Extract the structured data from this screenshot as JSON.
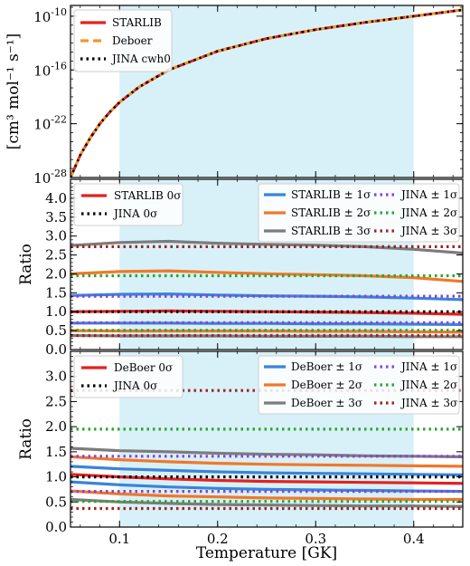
{
  "colors": {
    "band": "#d8f1f8",
    "starlib": "#e3221e",
    "deboer": "#f5952a",
    "jina": "#000000",
    "s1": "#3a84d9",
    "s2": "#f0782a",
    "s3": "#7c7c7c",
    "j1": "#8a42d9",
    "j2": "#2ea52e",
    "j3": "#9b2424"
  },
  "chart_data": [
    {
      "type": "line",
      "panel": "rate",
      "ylabel": "[cm³ mol⁻¹ s⁻¹]",
      "yscale": "log",
      "xlim": [
        0.05,
        0.45
      ],
      "ylim_log10": [
        -28,
        -8.8
      ],
      "band": [
        0.1,
        0.4
      ],
      "yticks_log10": [
        -28,
        -22,
        -16,
        -10
      ],
      "ytick_labels": [
        {
          "base": "10",
          "exp": "-28"
        },
        {
          "base": "10",
          "exp": "-22"
        },
        {
          "base": "10",
          "exp": "-16"
        },
        {
          "base": "10",
          "exp": "-10"
        }
      ],
      "x": [
        0.05,
        0.06,
        0.07,
        0.08,
        0.09,
        0.1,
        0.12,
        0.15,
        0.2,
        0.25,
        0.3,
        0.35,
        0.4,
        0.45
      ],
      "series": [
        {
          "name": "STARLIB",
          "color_key": "starlib",
          "style": "solid",
          "log10_values": [
            -28.0,
            -25.5,
            -23.6,
            -22.0,
            -20.7,
            -19.6,
            -17.9,
            -16.0,
            -13.9,
            -12.5,
            -11.5,
            -10.7,
            -10.0,
            -9.3
          ]
        },
        {
          "name": "Deboer",
          "color_key": "deboer",
          "style": "dashed",
          "log10_values": [
            -28.0,
            -25.5,
            -23.6,
            -22.0,
            -20.7,
            -19.6,
            -17.9,
            -16.0,
            -13.9,
            -12.5,
            -11.5,
            -10.7,
            -10.0,
            -9.3
          ]
        },
        {
          "name": "JINA cwh0",
          "color_key": "jina",
          "style": "dotted",
          "log10_values": [
            -28.0,
            -25.5,
            -23.6,
            -22.0,
            -20.7,
            -19.6,
            -17.9,
            -16.0,
            -13.9,
            -12.5,
            -11.5,
            -10.7,
            -10.0,
            -9.3
          ]
        }
      ],
      "legend": {
        "position": "top-left",
        "entries": [
          "STARLIB",
          "Deboer",
          "JINA cwh0"
        ]
      }
    },
    {
      "type": "line",
      "panel": "ratio-starlib",
      "ylabel": "Ratio",
      "xlim": [
        0.05,
        0.45
      ],
      "ylim": [
        0.0,
        4.5
      ],
      "band": [
        0.1,
        0.4
      ],
      "yticks": [
        "0.0",
        "0.5",
        "1.0",
        "1.5",
        "2.0",
        "2.5",
        "3.0",
        "3.5",
        "4.0"
      ],
      "x": [
        0.05,
        0.1,
        0.15,
        0.2,
        0.25,
        0.3,
        0.35,
        0.4,
        0.45
      ],
      "series": [
        {
          "name": "STARLIB +3σ",
          "color_key": "s3",
          "style": "solid",
          "values": [
            2.75,
            2.83,
            2.86,
            2.81,
            2.78,
            2.76,
            2.72,
            2.65,
            2.55
          ]
        },
        {
          "name": "STARLIB +2σ",
          "color_key": "s2",
          "style": "solid",
          "values": [
            2.0,
            2.06,
            2.08,
            2.04,
            2.0,
            1.98,
            1.95,
            1.9,
            1.8
          ]
        },
        {
          "name": "STARLIB +1σ",
          "color_key": "s1",
          "style": "solid",
          "values": [
            1.43,
            1.46,
            1.47,
            1.44,
            1.42,
            1.41,
            1.39,
            1.36,
            1.32
          ]
        },
        {
          "name": "STARLIB 0σ",
          "color_key": "starlib",
          "style": "solid",
          "values": [
            1.0,
            1.01,
            1.02,
            1.01,
            1.0,
            0.99,
            0.98,
            0.96,
            0.93
          ]
        },
        {
          "name": "STARLIB -1σ",
          "color_key": "s1",
          "style": "solid",
          "values": [
            0.7,
            0.7,
            0.7,
            0.69,
            0.69,
            0.68,
            0.68,
            0.67,
            0.66
          ]
        },
        {
          "name": "STARLIB -2σ",
          "color_key": "s2",
          "style": "solid",
          "values": [
            0.5,
            0.49,
            0.49,
            0.49,
            0.49,
            0.48,
            0.48,
            0.47,
            0.46
          ]
        },
        {
          "name": "STARLIB -3σ",
          "color_key": "s3",
          "style": "solid",
          "values": [
            0.37,
            0.36,
            0.36,
            0.36,
            0.35,
            0.35,
            0.35,
            0.34,
            0.34
          ]
        },
        {
          "name": "JINA +3σ",
          "color_key": "j3",
          "style": "dotted",
          "values": [
            2.72,
            2.72,
            2.72,
            2.72,
            2.72,
            2.72,
            2.72,
            2.72,
            2.72
          ]
        },
        {
          "name": "JINA +2σ",
          "color_key": "j2",
          "style": "dotted",
          "values": [
            1.95,
            1.95,
            1.95,
            1.95,
            1.95,
            1.95,
            1.95,
            1.95,
            1.95
          ]
        },
        {
          "name": "JINA +1σ",
          "color_key": "j1",
          "style": "dotted",
          "values": [
            1.41,
            1.41,
            1.41,
            1.41,
            1.41,
            1.41,
            1.41,
            1.41,
            1.41
          ]
        },
        {
          "name": "JINA 0σ",
          "color_key": "jina",
          "style": "dotted",
          "values": [
            1.0,
            1.0,
            1.0,
            1.0,
            1.0,
            1.0,
            1.0,
            1.0,
            1.0
          ]
        },
        {
          "name": "JINA -1σ",
          "color_key": "j1",
          "style": "dotted",
          "values": [
            0.71,
            0.71,
            0.71,
            0.71,
            0.71,
            0.71,
            0.71,
            0.71,
            0.71
          ]
        },
        {
          "name": "JINA -2σ",
          "color_key": "j2",
          "style": "dotted",
          "values": [
            0.51,
            0.51,
            0.51,
            0.51,
            0.51,
            0.51,
            0.51,
            0.51,
            0.51
          ]
        },
        {
          "name": "JINA -3σ",
          "color_key": "j3",
          "style": "dotted",
          "values": [
            0.37,
            0.37,
            0.37,
            0.37,
            0.37,
            0.37,
            0.37,
            0.37,
            0.37
          ]
        }
      ],
      "legend_left": [
        {
          "text": "STARLIB 0σ",
          "color_key": "starlib",
          "style": "solid"
        },
        {
          "text": "JINA 0σ",
          "color_key": "jina",
          "style": "dotted"
        }
      ],
      "legend_right": [
        {
          "text": "STARLIB ± 1σ",
          "color_key": "s1",
          "style": "solid"
        },
        {
          "text": "JINA ± 1σ",
          "color_key": "j1",
          "style": "dotted"
        },
        {
          "text": "STARLIB ± 2σ",
          "color_key": "s2",
          "style": "solid"
        },
        {
          "text": "JINA ± 2σ",
          "color_key": "j2",
          "style": "dotted"
        },
        {
          "text": "STARLIB ± 3σ",
          "color_key": "s3",
          "style": "solid"
        },
        {
          "text": "JINA ± 3σ",
          "color_key": "j3",
          "style": "dotted"
        }
      ]
    },
    {
      "type": "line",
      "panel": "ratio-deboer",
      "ylabel": "Ratio",
      "xlabel": "Temperature [GK]",
      "xlim": [
        0.05,
        0.45
      ],
      "ylim": [
        0.0,
        3.5
      ],
      "band": [
        0.1,
        0.4
      ],
      "yticks": [
        "0.0",
        "0.5",
        "1.0",
        "1.5",
        "2.0",
        "2.5",
        "3.0"
      ],
      "xticks": [
        "0.1",
        "0.2",
        "0.3",
        "0.4"
      ],
      "xtick_values": [
        0.1,
        0.2,
        0.3,
        0.4
      ],
      "x": [
        0.05,
        0.1,
        0.15,
        0.2,
        0.25,
        0.3,
        0.35,
        0.4,
        0.45
      ],
      "series": [
        {
          "name": "JINA +3σ",
          "color_key": "j3",
          "style": "dotted",
          "values": [
            2.72,
            2.72,
            2.72,
            2.72,
            2.72,
            2.72,
            2.72,
            2.72,
            2.72
          ]
        },
        {
          "name": "JINA +2σ",
          "color_key": "j2",
          "style": "dotted",
          "values": [
            1.95,
            1.95,
            1.95,
            1.95,
            1.95,
            1.95,
            1.95,
            1.95,
            1.95
          ]
        },
        {
          "name": "DeBoer +3σ",
          "color_key": "s3",
          "style": "solid",
          "values": [
            1.57,
            1.52,
            1.5,
            1.47,
            1.45,
            1.44,
            1.42,
            1.41,
            1.4
          ]
        },
        {
          "name": "DeBoer +2σ",
          "color_key": "s2",
          "style": "solid",
          "values": [
            1.4,
            1.34,
            1.3,
            1.27,
            1.25,
            1.24,
            1.23,
            1.22,
            1.21
          ]
        },
        {
          "name": "DeBoer +1σ",
          "color_key": "s1",
          "style": "solid",
          "values": [
            1.21,
            1.16,
            1.13,
            1.1,
            1.08,
            1.07,
            1.06,
            1.05,
            1.04
          ]
        },
        {
          "name": "DeBoer 0σ",
          "color_key": "starlib",
          "style": "solid",
          "values": [
            1.05,
            1.0,
            0.96,
            0.93,
            0.91,
            0.9,
            0.89,
            0.88,
            0.87
          ]
        },
        {
          "name": "DeBoer -1σ",
          "color_key": "s1",
          "style": "solid",
          "values": [
            0.9,
            0.84,
            0.8,
            0.77,
            0.75,
            0.74,
            0.73,
            0.72,
            0.71
          ]
        },
        {
          "name": "DeBoer -2σ",
          "color_key": "s2",
          "style": "solid",
          "values": [
            0.72,
            0.66,
            0.62,
            0.6,
            0.58,
            0.57,
            0.56,
            0.55,
            0.55
          ]
        },
        {
          "name": "DeBoer -3σ",
          "color_key": "s3",
          "style": "solid",
          "values": [
            0.55,
            0.5,
            0.47,
            0.45,
            0.44,
            0.43,
            0.42,
            0.42,
            0.41
          ]
        },
        {
          "name": "JINA +1σ",
          "color_key": "j1",
          "style": "dotted",
          "values": [
            1.41,
            1.41,
            1.41,
            1.41,
            1.41,
            1.41,
            1.41,
            1.41,
            1.41
          ]
        },
        {
          "name": "JINA 0σ",
          "color_key": "jina",
          "style": "dotted",
          "values": [
            1.0,
            1.0,
            1.0,
            1.0,
            1.0,
            1.0,
            1.0,
            1.0,
            1.0
          ]
        },
        {
          "name": "JINA -1σ",
          "color_key": "j1",
          "style": "dotted",
          "values": [
            0.71,
            0.71,
            0.71,
            0.71,
            0.71,
            0.71,
            0.71,
            0.71,
            0.71
          ]
        },
        {
          "name": "JINA -2σ",
          "color_key": "j2",
          "style": "dotted",
          "values": [
            0.51,
            0.51,
            0.51,
            0.51,
            0.51,
            0.51,
            0.51,
            0.51,
            0.51
          ]
        },
        {
          "name": "JINA -3σ",
          "color_key": "j3",
          "style": "dotted",
          "values": [
            0.37,
            0.37,
            0.37,
            0.37,
            0.37,
            0.37,
            0.37,
            0.37,
            0.37
          ]
        }
      ],
      "legend_left": [
        {
          "text": "DeBoer 0σ",
          "color_key": "starlib",
          "style": "solid"
        },
        {
          "text": "JINA 0σ",
          "color_key": "jina",
          "style": "dotted"
        }
      ],
      "legend_right": [
        {
          "text": "DeBoer ± 1σ",
          "color_key": "s1",
          "style": "solid"
        },
        {
          "text": "JINA ± 1σ",
          "color_key": "j1",
          "style": "dotted"
        },
        {
          "text": "DeBoer ± 2σ",
          "color_key": "s2",
          "style": "solid"
        },
        {
          "text": "JINA ± 2σ",
          "color_key": "j2",
          "style": "dotted"
        },
        {
          "text": "DeBoer ± 3σ",
          "color_key": "s3",
          "style": "solid"
        },
        {
          "text": "JINA ± 3σ",
          "color_key": "j3",
          "style": "dotted"
        }
      ]
    }
  ]
}
